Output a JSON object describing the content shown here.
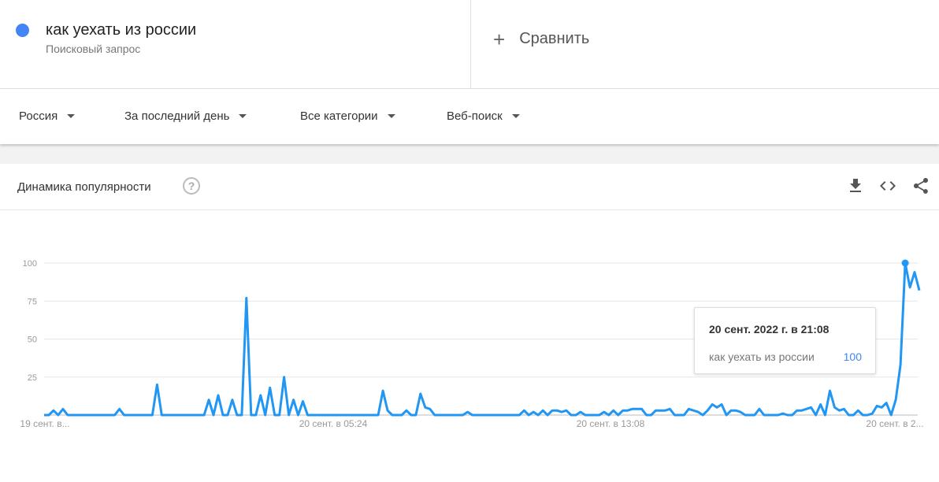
{
  "search_term": {
    "label": "как уехать из россии",
    "sublabel": "Поисковый запрос",
    "color": "#4285f4"
  },
  "compare": {
    "label": "Сравнить",
    "icon": "plus-icon"
  },
  "filters": [
    {
      "label": "Россия"
    },
    {
      "label": "За последний день"
    },
    {
      "label": "Все категории"
    },
    {
      "label": "Веб-поиск"
    }
  ],
  "card": {
    "title": "Динамика популярности",
    "help_icon": "?",
    "actions": [
      "download-icon",
      "embed-code-icon",
      "share-icon"
    ]
  },
  "tooltip": {
    "date": "20 сент. 2022 г. в 21:08",
    "term": "как уехать из россии",
    "value": "100"
  },
  "chart_data": {
    "type": "line",
    "ylim": [
      0,
      100
    ],
    "yticks": [
      "100",
      "75",
      "50",
      "25"
    ],
    "xtick_labels": [
      "19 сент. в...",
      "20 сент. в 05:24",
      "20 сент. в 13:08",
      "20 сент. в 2..."
    ],
    "grid": true,
    "line_color": "#2196f3",
    "series": [
      {
        "name": "как уехать из россии",
        "values": [
          0,
          0,
          3,
          0,
          4,
          0,
          0,
          0,
          0,
          0,
          0,
          0,
          0,
          0,
          0,
          0,
          4,
          0,
          0,
          0,
          0,
          0,
          0,
          0,
          20,
          0,
          0,
          0,
          0,
          0,
          0,
          0,
          0,
          0,
          0,
          10,
          0,
          13,
          0,
          0,
          10,
          0,
          0,
          77,
          0,
          0,
          13,
          0,
          18,
          0,
          0,
          25,
          0,
          10,
          0,
          9,
          0,
          0,
          0,
          0,
          0,
          0,
          0,
          0,
          0,
          0,
          0,
          0,
          0,
          0,
          0,
          0,
          16,
          3,
          0,
          0,
          0,
          3,
          0,
          0,
          14,
          5,
          4,
          0,
          0,
          0,
          0,
          0,
          0,
          0,
          2,
          0,
          0,
          0,
          0,
          0,
          0,
          0,
          0,
          0,
          0,
          0,
          3,
          0,
          2,
          0,
          3,
          0,
          3,
          3,
          2,
          3,
          0,
          0,
          2,
          0,
          0,
          0,
          0,
          2,
          0,
          3,
          0,
          3,
          3,
          4,
          4,
          4,
          0,
          0,
          3,
          3,
          3,
          4,
          0,
          0,
          0,
          4,
          3,
          2,
          0,
          3,
          7,
          5,
          7,
          0,
          3,
          3,
          2,
          0,
          0,
          0,
          4,
          0,
          0,
          0,
          0,
          1,
          0,
          0,
          3,
          3,
          4,
          5,
          0,
          7,
          0,
          16,
          5,
          3,
          4,
          0,
          0,
          3,
          0,
          0,
          1,
          6,
          5,
          8,
          0,
          10,
          33,
          100,
          84,
          94,
          82
        ]
      }
    ],
    "highlight_index": 183
  }
}
